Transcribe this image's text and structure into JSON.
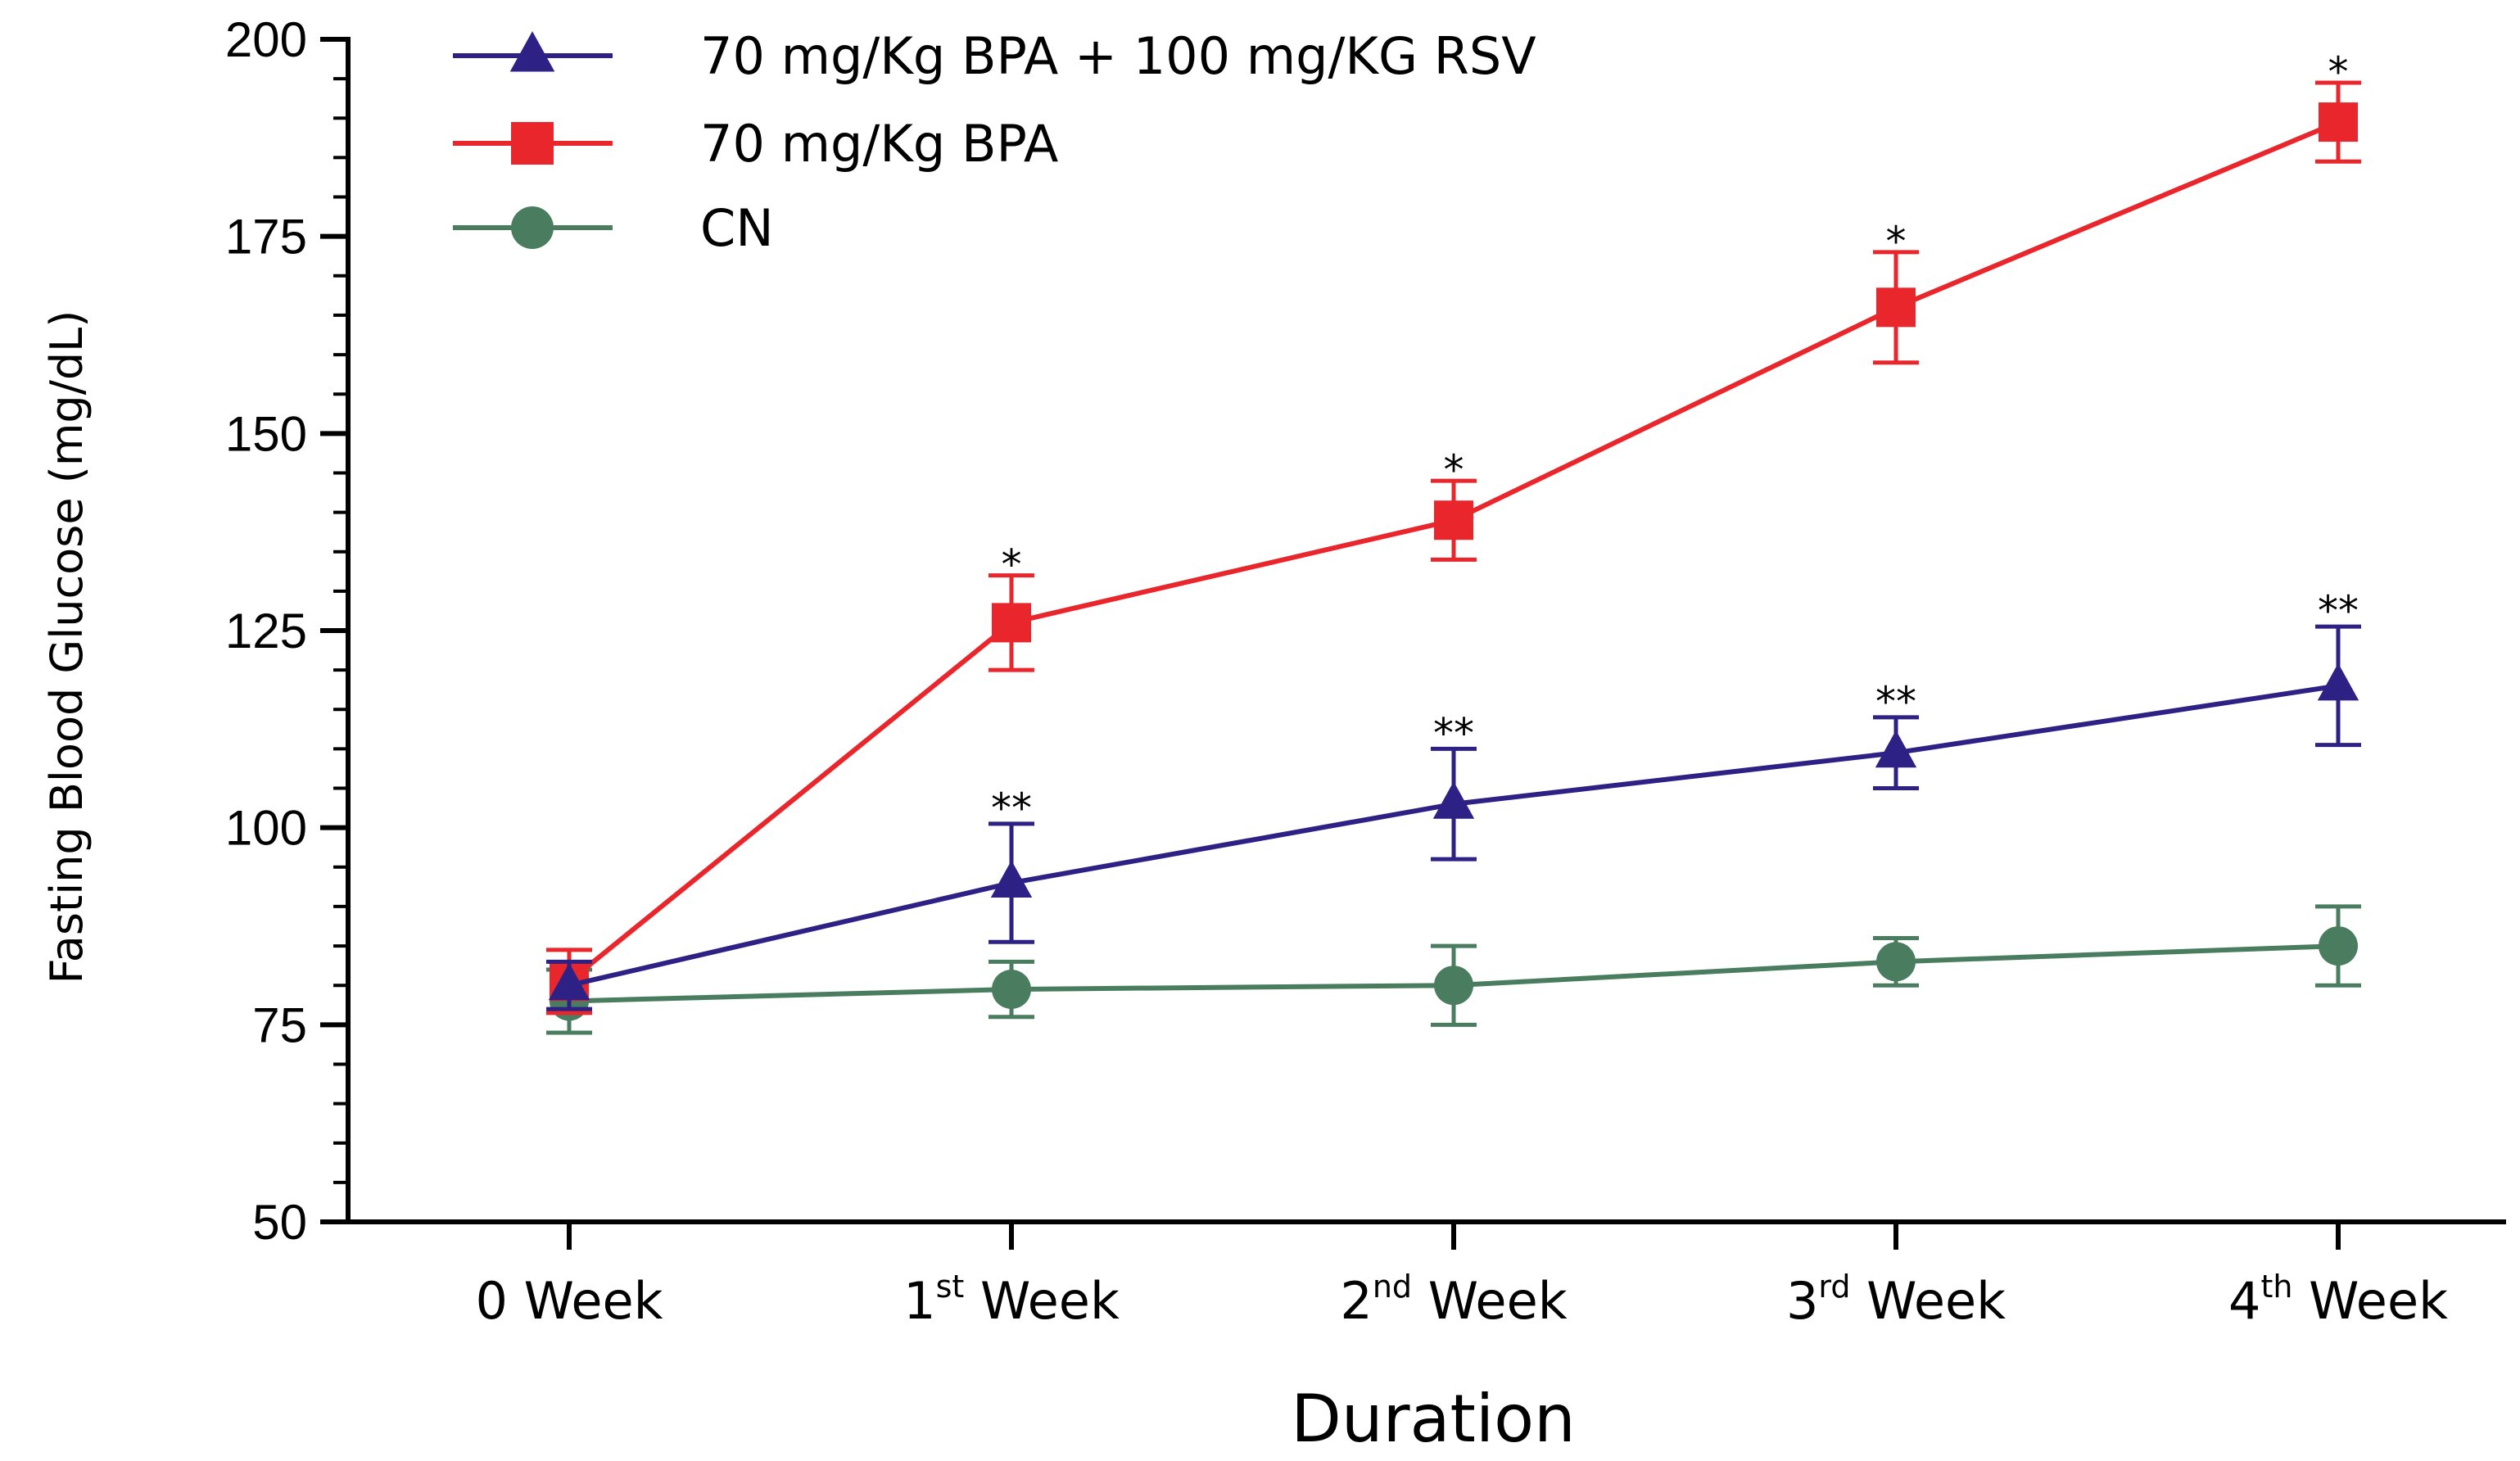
{
  "chart_data": {
    "type": "line",
    "title": "",
    "xlabel": "Duration",
    "ylabel": "Fasting Blood Glucose (mg/dL)",
    "ylim": [
      50,
      200
    ],
    "y_major_ticks": [
      50,
      75,
      100,
      125,
      150,
      175,
      200
    ],
    "y_minor_step": 5,
    "grid": false,
    "legend_position": "top-left",
    "categories": [
      {
        "num": "0",
        "sup": "",
        "rest": " Week"
      },
      {
        "num": "1",
        "sup": "st",
        "rest": " Week"
      },
      {
        "num": "2",
        "sup": "nd",
        "rest": " Week"
      },
      {
        "num": "3",
        "sup": "rd",
        "rest": " Week"
      },
      {
        "num": "4",
        "sup": "th",
        "rest": " Week"
      }
    ],
    "series": [
      {
        "name": "70 mg/Kg BPA + 100 mg/KG RSV",
        "marker": "triangle",
        "color": "#2e2185",
        "values": [
          80,
          93,
          103,
          109.5,
          118
        ],
        "errors": [
          3,
          7.5,
          7,
          4.5,
          7.5
        ],
        "significance": [
          "",
          "**",
          "**",
          "**",
          "**"
        ]
      },
      {
        "name": "70 mg/Kg BPA",
        "marker": "square",
        "color": "#e8262b",
        "values": [
          80.5,
          126,
          139,
          166,
          189.5
        ],
        "errors": [
          4,
          6,
          5,
          7,
          5
        ],
        "significance": [
          "",
          "*",
          "*",
          "*",
          "*"
        ]
      },
      {
        "name": "CN",
        "marker": "circle",
        "color": "#4a7d60",
        "values": [
          78,
          79.5,
          80,
          83,
          85
        ],
        "errors": [
          4,
          3.5,
          5,
          3,
          5
        ],
        "significance": [
          "",
          "",
          "",
          "",
          ""
        ]
      }
    ]
  }
}
